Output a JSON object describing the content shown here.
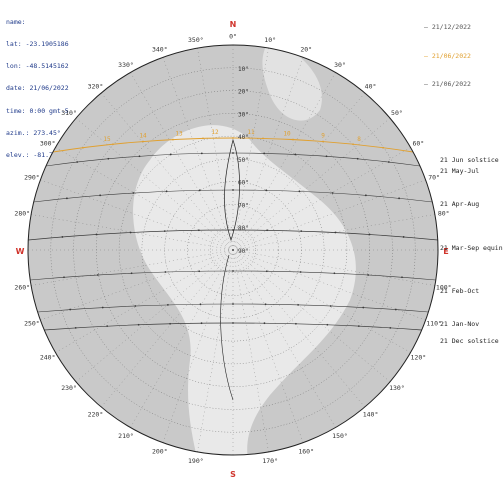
{
  "info": {
    "lines": [
      "name:",
      "lat: -23.1905186",
      "lon: -48.5145162",
      "date: 21/06/2022",
      "time: 0:00 gmt-5",
      "azim.: 273.45°",
      "elev.: -81.77°"
    ]
  },
  "legend": [
    {
      "label": "— 21/12/2022",
      "color": "#555555"
    },
    {
      "label": "— 21/06/2022",
      "color": "#e0a030"
    },
    {
      "label": "— 21/06/2022",
      "color": "#555555"
    }
  ],
  "cardinals": {
    "n": "N",
    "s": "S",
    "e": "E",
    "w": "W"
  },
  "azimuth_labels": [
    "0°",
    "10°",
    "20°",
    "30°",
    "40°",
    "50°",
    "60°",
    "70°",
    "80°",
    "100°",
    "110°",
    "120°",
    "130°",
    "140°",
    "150°",
    "160°",
    "170°",
    "190°",
    "200°",
    "210°",
    "220°",
    "230°",
    "240°",
    "250°",
    "260°",
    "280°",
    "290°",
    "300°",
    "310°",
    "320°",
    "330°",
    "340°",
    "350°"
  ],
  "elevation_labels": [
    "10°",
    "20°",
    "30°",
    "40°",
    "50°",
    "60°",
    "70°",
    "80°",
    "90°"
  ],
  "path_labels": [
    "21 Jun  solstice",
    "21 May-Jul",
    "21 Apr-Aug",
    "21 Mar-Sep  equinox",
    "21 Feb-Oct",
    "21 Jan-Nov",
    "21 Dec  solstice"
  ],
  "hour_labels": [
    "15",
    "14",
    "13",
    "12",
    "11",
    "10",
    "9",
    "8"
  ],
  "colors": {
    "horizon": "#222222",
    "grid": "#555555",
    "summer_path": "#e0a030",
    "paths": "#3a3a3a",
    "cardinal": "#d0342c",
    "info_text": "#1f3a8a",
    "map_background": "#c9c9c9",
    "land": "#ececec"
  }
}
